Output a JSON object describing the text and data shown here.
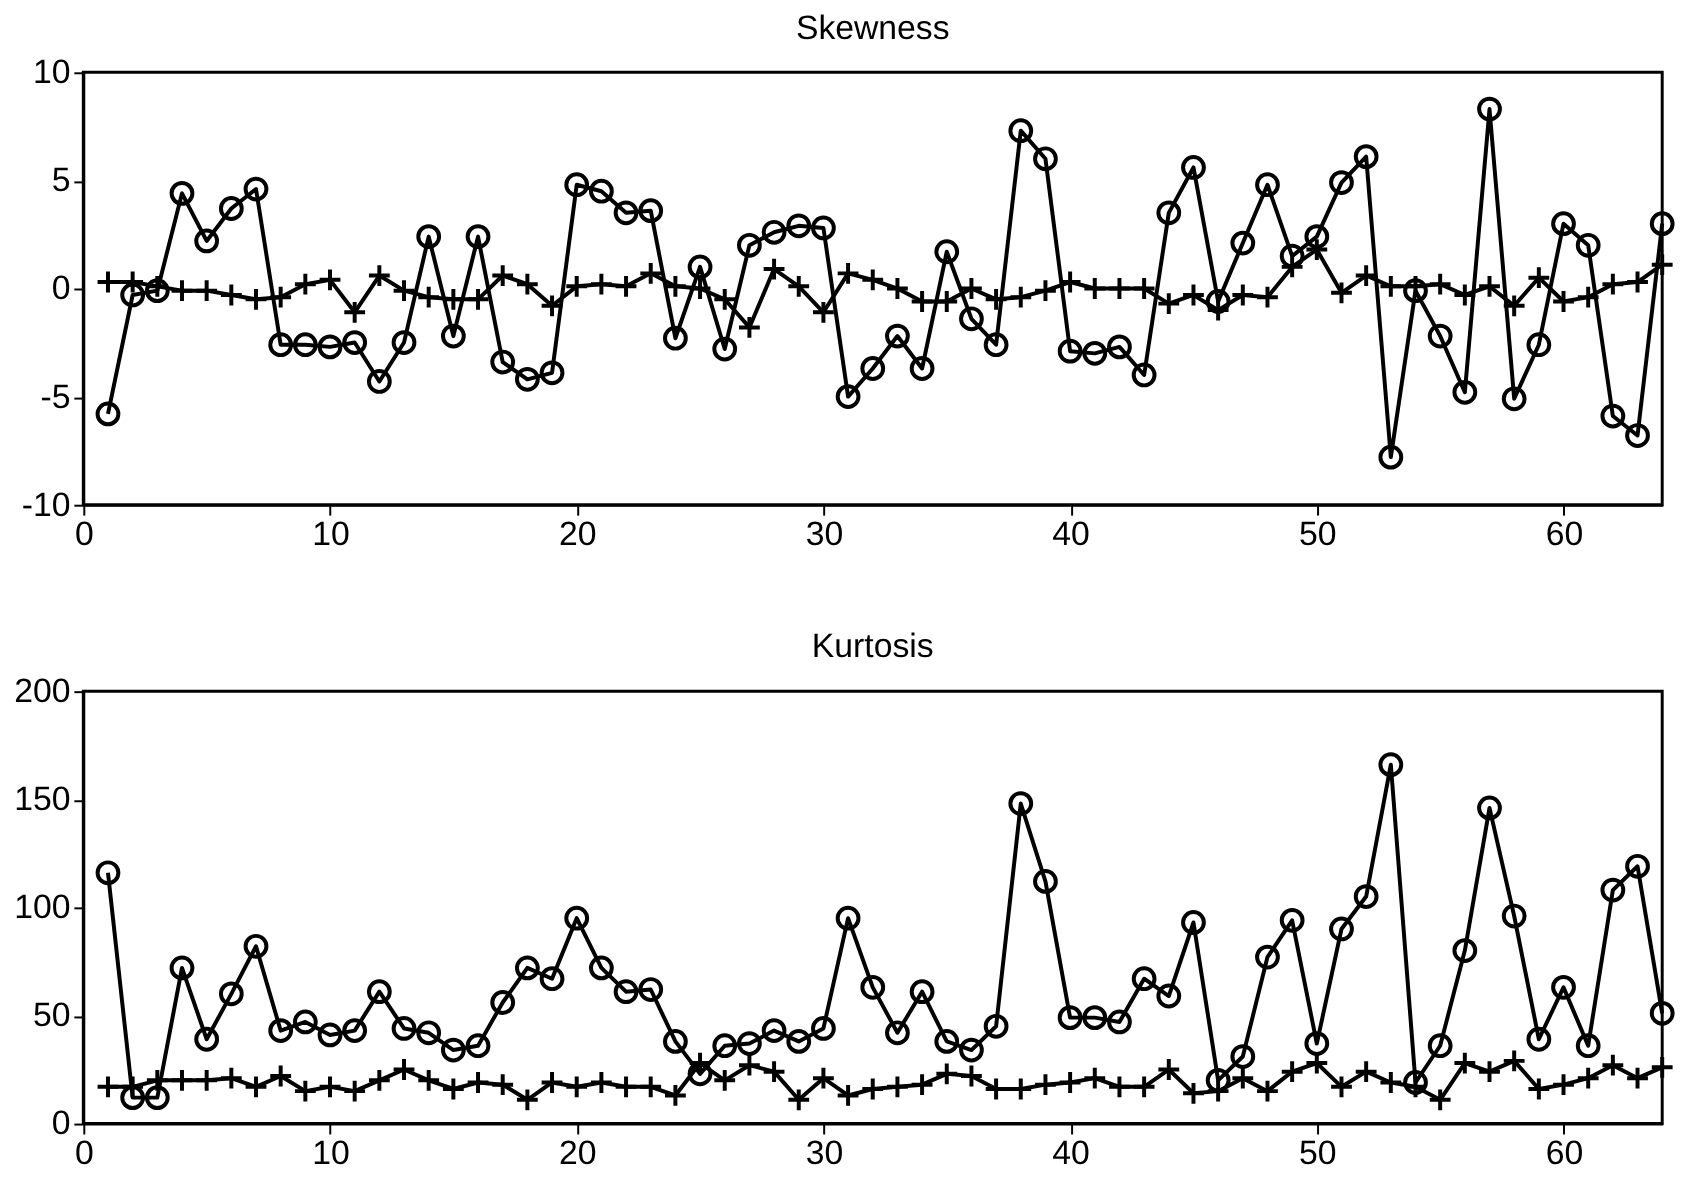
{
  "chart_data": [
    {
      "type": "line",
      "title": "Skewness",
      "x": [
        1,
        2,
        3,
        4,
        5,
        6,
        7,
        8,
        9,
        10,
        11,
        12,
        13,
        14,
        15,
        16,
        17,
        18,
        19,
        20,
        21,
        22,
        23,
        24,
        25,
        26,
        27,
        28,
        29,
        30,
        31,
        32,
        33,
        34,
        35,
        36,
        37,
        38,
        39,
        40,
        41,
        42,
        43,
        44,
        45,
        46,
        47,
        48,
        49,
        50,
        51,
        52,
        53,
        54,
        55,
        56,
        57,
        58,
        59,
        60,
        61,
        62,
        63,
        64
      ],
      "xlim": [
        0,
        64
      ],
      "xticks": [
        0,
        10,
        20,
        30,
        40,
        50,
        60
      ],
      "ylim": [
        -10,
        10
      ],
      "yticks": [
        -10,
        -5,
        0,
        5,
        10
      ],
      "grid": false,
      "series": [
        {
          "color": "#000000",
          "marker": "circle",
          "values": [
            -5.8,
            -0.3,
            -0.1,
            4.4,
            2.2,
            3.7,
            4.6,
            -2.6,
            -2.6,
            -2.7,
            -2.5,
            -4.3,
            -2.5,
            2.4,
            -2.2,
            2.4,
            -3.4,
            -4.2,
            -3.9,
            4.8,
            4.5,
            3.5,
            3.6,
            -2.3,
            1.0,
            -2.8,
            2.0,
            2.6,
            2.9,
            2.8,
            -5.0,
            -3.7,
            -2.2,
            -3.7,
            1.7,
            -1.4,
            -2.6,
            7.3,
            6.0,
            -2.9,
            -3.0,
            -2.7,
            -4.0,
            3.5,
            5.6,
            -0.6,
            2.1,
            4.8,
            1.5,
            2.4,
            4.9,
            6.1,
            -7.8,
            -0.1,
            -2.2,
            -4.8,
            8.3,
            -5.1,
            -2.6,
            3.0,
            2.0,
            -5.9,
            -6.8,
            3.0
          ]
        },
        {
          "color": "#000000",
          "marker": "cross",
          "values": [
            0.3,
            0.3,
            0.1,
            -0.1,
            -0.1,
            -0.3,
            -0.5,
            -0.4,
            0.2,
            0.4,
            -1.1,
            0.6,
            -0.1,
            -0.4,
            -0.5,
            -0.5,
            0.6,
            0.2,
            -0.8,
            0.1,
            0.2,
            0.1,
            0.7,
            0.1,
            0.0,
            -0.5,
            -1.8,
            0.9,
            0.1,
            -1.1,
            0.7,
            0.4,
            0.0,
            -0.6,
            -0.6,
            0.0,
            -0.5,
            -0.4,
            -0.1,
            0.3,
            0.0,
            0.0,
            0.0,
            -0.7,
            -0.3,
            -1.0,
            -0.3,
            -0.4,
            1.0,
            1.8,
            -0.2,
            0.6,
            0.1,
            0.1,
            0.2,
            -0.3,
            0.1,
            -0.8,
            0.5,
            -0.6,
            -0.4,
            0.2,
            0.3,
            1.1
          ]
        }
      ]
    },
    {
      "type": "line",
      "title": "Kurtosis",
      "x": [
        1,
        2,
        3,
        4,
        5,
        6,
        7,
        8,
        9,
        10,
        11,
        12,
        13,
        14,
        15,
        16,
        17,
        18,
        19,
        20,
        21,
        22,
        23,
        24,
        25,
        26,
        27,
        28,
        29,
        30,
        31,
        32,
        33,
        34,
        35,
        36,
        37,
        38,
        39,
        40,
        41,
        42,
        43,
        44,
        45,
        46,
        47,
        48,
        49,
        50,
        51,
        52,
        53,
        54,
        55,
        56,
        57,
        58,
        59,
        60,
        61,
        62,
        63,
        64
      ],
      "xlim": [
        0,
        64
      ],
      "xticks": [
        0,
        10,
        20,
        30,
        40,
        50,
        60
      ],
      "ylim": [
        0,
        200
      ],
      "yticks": [
        0,
        50,
        100,
        150,
        200
      ],
      "grid": false,
      "series": [
        {
          "color": "#000000",
          "marker": "circle",
          "values": [
            116,
            12,
            12,
            72,
            39,
            60,
            82,
            43,
            47,
            41,
            43,
            61,
            44,
            42,
            34,
            36,
            56,
            72,
            67,
            95,
            72,
            61,
            62,
            38,
            23,
            36,
            37,
            43,
            38,
            44,
            95,
            63,
            42,
            61,
            38,
            34,
            45,
            148,
            112,
            49,
            49,
            47,
            67,
            59,
            93,
            20,
            31,
            77,
            94,
            37,
            90,
            105,
            166,
            19,
            36,
            80,
            146,
            96,
            39,
            63,
            36,
            108,
            119,
            51
          ]
        },
        {
          "color": "#000000",
          "marker": "cross",
          "values": [
            17,
            17,
            20,
            20,
            20,
            21,
            17,
            22,
            15,
            17,
            15,
            20,
            25,
            20,
            16,
            19,
            18,
            11,
            19,
            17,
            19,
            17,
            17,
            13,
            28,
            20,
            27,
            24,
            11,
            21,
            13,
            16,
            17,
            18,
            23,
            22,
            16,
            16,
            18,
            19,
            21,
            17,
            17,
            25,
            14,
            15,
            21,
            15,
            24,
            28,
            17,
            24,
            19,
            17,
            11,
            28,
            24,
            29,
            16,
            18,
            21,
            27,
            21,
            26
          ]
        }
      ]
    }
  ]
}
